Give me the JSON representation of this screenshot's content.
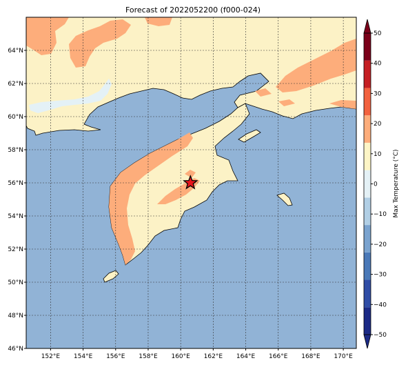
{
  "title": "Forecast of 2022052200 (f000-024)",
  "map": {
    "lon_ticks": [
      "152°E",
      "154°E",
      "156°E",
      "158°E",
      "160°E",
      "162°E",
      "164°E",
      "166°E",
      "168°E",
      "170°E"
    ],
    "lat_ticks": [
      "46°N",
      "48°N",
      "50°N",
      "52°N",
      "54°N",
      "56°N",
      "58°N",
      "60°N",
      "62°N",
      "64°N"
    ],
    "ocean_color": "#91b3d6",
    "marker": {
      "icon": "star-icon",
      "color": "#e8141c",
      "lon": 160.6,
      "lat": 56.0
    }
  },
  "colorbar": {
    "label": "Max Temperature (°C)",
    "ticks": [
      "−50",
      "−40",
      "−30",
      "−20",
      "−10",
      "0",
      "10",
      "20",
      "30",
      "40",
      "50"
    ],
    "colors": [
      "#1b2a86",
      "#2f4da6",
      "#4a79b8",
      "#7aa3cf",
      "#b1cfe5",
      "#e4f1f6",
      "#fdf5c6",
      "#fdad7b",
      "#f2623f",
      "#c51f23",
      "#7b0019"
    ]
  }
}
